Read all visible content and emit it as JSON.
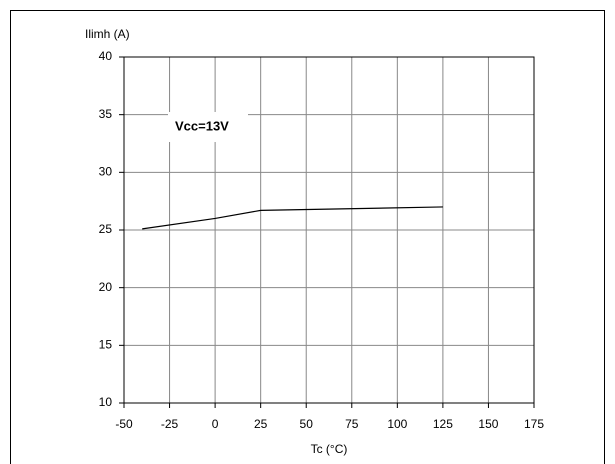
{
  "chart_data": {
    "type": "line",
    "y_label": "Ilimh (A)",
    "x_label": "Tc (°C)",
    "annotation": "Vcc=13V",
    "x": [
      -40,
      0,
      25,
      125
    ],
    "series": [
      {
        "color": "#000000",
        "values": [
          25.1,
          26.0,
          26.7,
          27.0
        ]
      }
    ],
    "xlim": [
      -50,
      175
    ],
    "xticks": [
      -50,
      -25,
      0,
      25,
      50,
      75,
      100,
      125,
      150,
      175
    ],
    "ylim": [
      10,
      40
    ],
    "yticks": [
      10,
      15,
      20,
      25,
      30,
      35,
      40
    ],
    "grid": true
  }
}
